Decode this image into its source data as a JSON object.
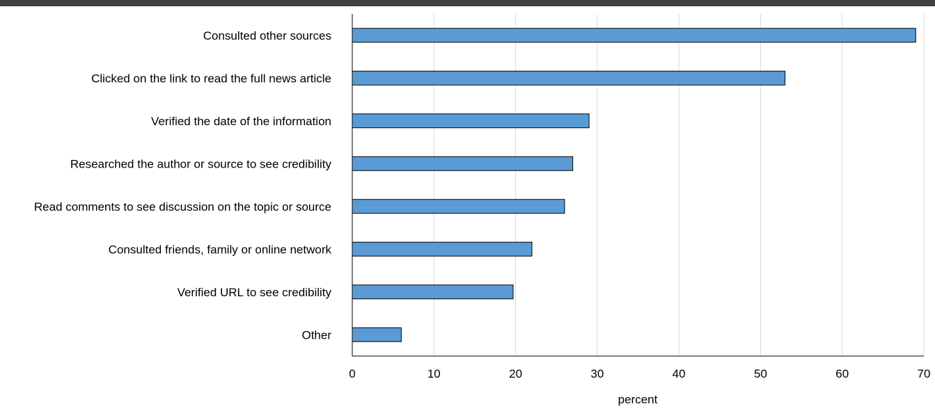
{
  "chart_data": {
    "type": "bar",
    "orientation": "horizontal",
    "title": "",
    "xlabel": "percent",
    "ylabel": "",
    "xlim": [
      0,
      70
    ],
    "x_ticks": [
      0,
      10,
      20,
      30,
      40,
      50,
      60,
      70
    ],
    "grid": "vertical",
    "legend": "none",
    "categories": [
      "Consulted other sources",
      "Clicked on the link to read the full news article",
      "Verified the date of the information",
      "Researched the author or source to see credibility",
      "Read comments to see discussion on the topic or source",
      "Consulted friends, family or online network",
      "Verified URL to see credibility",
      "Other"
    ],
    "values": [
      69,
      53,
      29,
      27,
      26,
      22,
      19.7,
      6
    ],
    "colors": {
      "bar": "#5b9bd5",
      "bar_outline": "#000000",
      "grid": "#d9d9d9",
      "axis": "#000000",
      "top_rule": "#404040"
    }
  }
}
